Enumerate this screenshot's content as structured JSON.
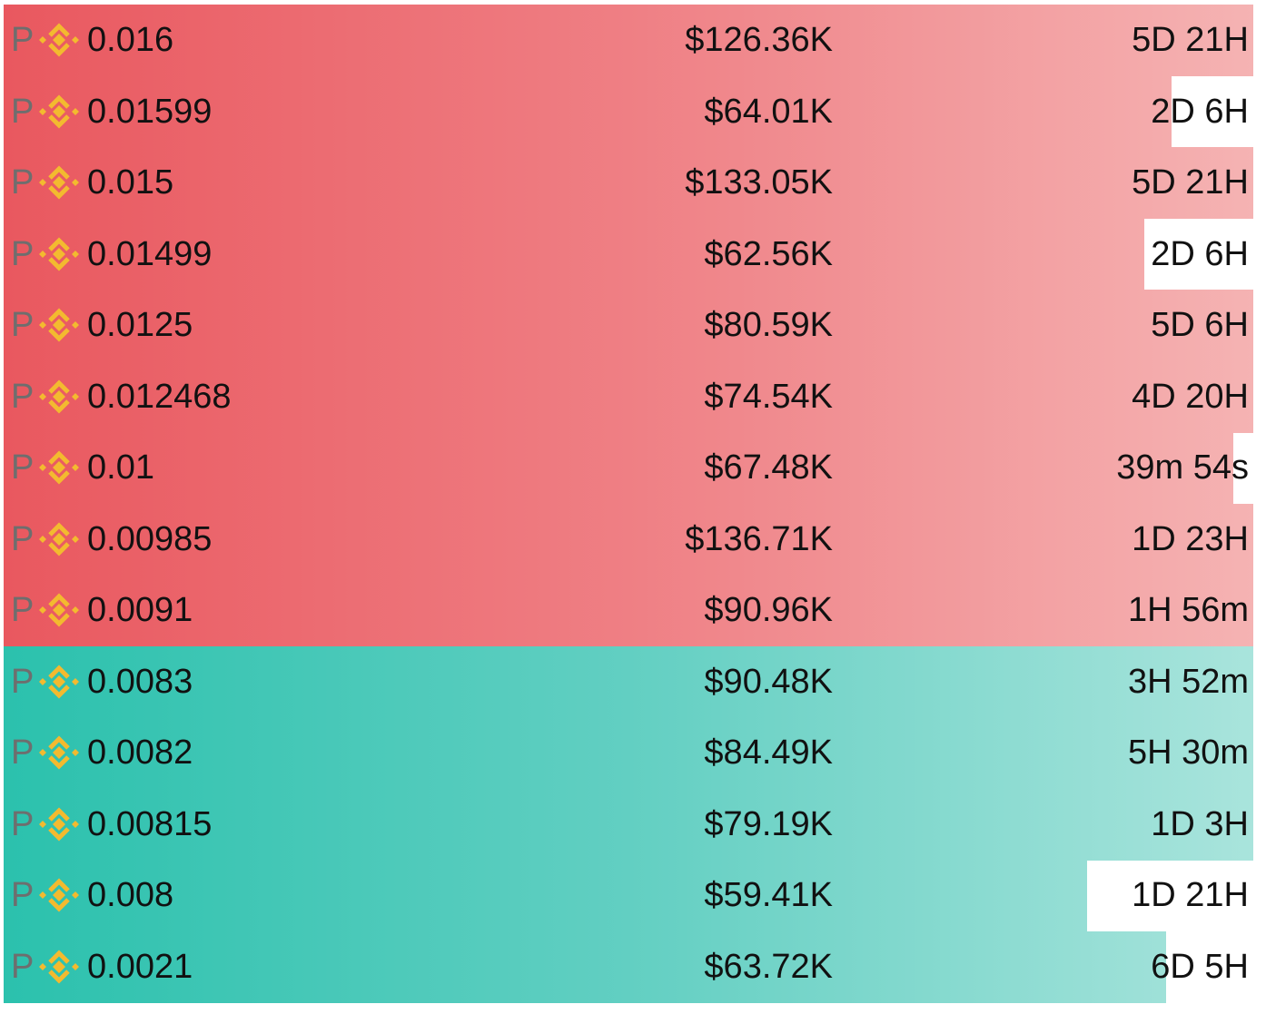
{
  "asks": [
    {
      "prefix": "P",
      "price": "0.016",
      "amount": "$126.36K",
      "time": "5D 21H"
    },
    {
      "prefix": "P",
      "price": "0.01599",
      "amount": "$64.01K",
      "time": "2D 6H"
    },
    {
      "prefix": "P",
      "price": "0.015",
      "amount": "$133.05K",
      "time": "5D 21H"
    },
    {
      "prefix": "P",
      "price": "0.01499",
      "amount": "$62.56K",
      "time": "2D 6H"
    },
    {
      "prefix": "P",
      "price": "0.0125",
      "amount": "$80.59K",
      "time": "5D 6H"
    },
    {
      "prefix": "P",
      "price": "0.012468",
      "amount": "$74.54K",
      "time": "4D 20H"
    },
    {
      "prefix": "P",
      "price": "0.01",
      "amount": "$67.48K",
      "time": "39m 54s"
    },
    {
      "prefix": "P",
      "price": "0.00985",
      "amount": "$136.71K",
      "time": "1D 23H"
    },
    {
      "prefix": "P",
      "price": "0.0091",
      "amount": "$90.96K",
      "time": "1H 56m"
    }
  ],
  "bids": [
    {
      "prefix": "P",
      "price": "0.0083",
      "amount": "$90.48K",
      "time": "3H 52m"
    },
    {
      "prefix": "P",
      "price": "0.0082",
      "amount": "$84.49K",
      "time": "5H 30m"
    },
    {
      "prefix": "P",
      "price": "0.00815",
      "amount": "$79.19K",
      "time": "1D 3H"
    },
    {
      "prefix": "P",
      "price": "0.008",
      "amount": "$59.41K",
      "time": "1D 21H"
    },
    {
      "prefix": "P",
      "price": "0.0021",
      "amount": "$63.72K",
      "time": "6D 5H"
    }
  ]
}
